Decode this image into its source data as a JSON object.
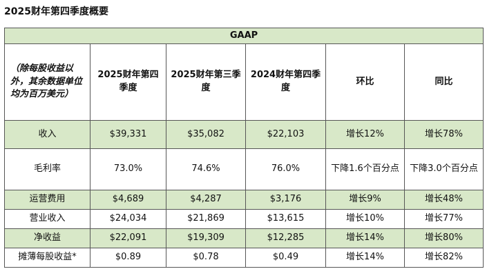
{
  "title": "2025财年第四季度概要",
  "table": {
    "group_header": "GAAP",
    "first_header": "（除每股收益以外，其余数据单位均为百万美元）",
    "columns": [
      "2025财年第四季度",
      "2025财年第三季度",
      "2024财年第四季度",
      "环比",
      "同比"
    ],
    "rows": [
      {
        "metric": "收入",
        "values": [
          "$39,331",
          "$35,082",
          "$22,103",
          "增长12%",
          "增长78%"
        ]
      },
      {
        "metric": "毛利率",
        "values": [
          "73.0%",
          "74.6%",
          "76.0%",
          "下降1.6个百分点",
          "下降3.0个百分点"
        ]
      },
      {
        "metric": "运营费用",
        "values": [
          "$4,689",
          "$4,287",
          "$3,176",
          "增长9%",
          "增长48%"
        ]
      },
      {
        "metric": "营业收入",
        "values": [
          "$24,034",
          "$21,869",
          "$13,615",
          "增长10%",
          "增长77%"
        ]
      },
      {
        "metric": "净收益",
        "values": [
          "$22,091",
          "$19,309",
          "$12,285",
          "增长14%",
          "增长80%"
        ]
      },
      {
        "metric": "摊薄每股收益*",
        "values": [
          "$0.89",
          "$0.78",
          "$0.49",
          "增长14%",
          "增长82%"
        ]
      }
    ]
  }
}
